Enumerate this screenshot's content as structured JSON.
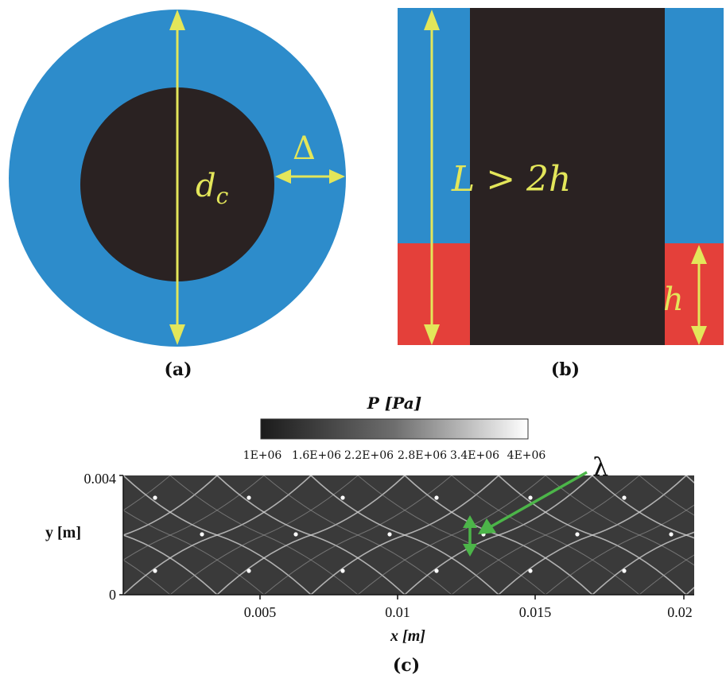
{
  "panel_a": {
    "caption": "(a)",
    "diameter_label": "d",
    "diameter_subscript": "c",
    "gap_label": "Δ"
  },
  "panel_b": {
    "caption": "(b)",
    "length_label": "L > 2h",
    "height_label": "h"
  },
  "panel_c": {
    "caption": "(c)",
    "colorbar_title": "P [Pa]",
    "colorbar_ticks": [
      "1E+06",
      "1.6E+06",
      "2.2E+06",
      "2.8E+06",
      "3.4E+06",
      "4E+06"
    ],
    "y_axis_label": "y [m]",
    "x_axis_label": "x [m]",
    "y_ticks": [
      "0.004",
      "0"
    ],
    "x_ticks": [
      "0.005",
      "0.01",
      "0.015",
      "0.02"
    ],
    "wavelength_label": "λ"
  },
  "colors": {
    "outer_annulus": "#2d8ccb",
    "inner_core": "#2a2222",
    "fill_layer": "#e4403a",
    "arrow_yellow": "#e3e65a",
    "arrow_green": "#4cb549"
  }
}
